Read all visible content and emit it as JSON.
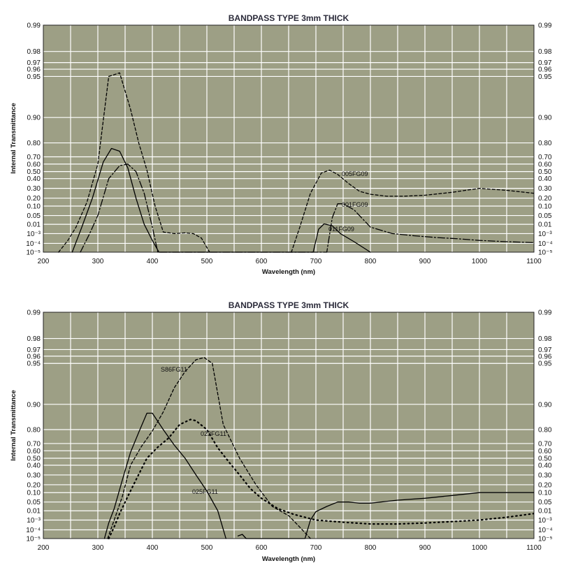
{
  "chart_data": [
    {
      "type": "line",
      "title": "BANDPASS TYPE 3mm THICK",
      "xlabel": "Wavelength (nm)",
      "ylabel": "Internal Transmittance",
      "xlim": [
        200,
        1100
      ],
      "x_ticks": [
        "200",
        "300",
        "400",
        "500",
        "600",
        "700",
        "800",
        "900",
        "1000",
        "1100"
      ],
      "y_ticks": [
        "10⁻⁵",
        "10⁻⁴",
        "10⁻³",
        "0.01",
        "0.05",
        "0.10",
        "0.20",
        "0.30",
        "0.40",
        "0.50",
        "0.60",
        "0.70",
        "0.80",
        "0.90",
        "0.95",
        "0.96",
        "0.97",
        "0.98",
        "0.99"
      ],
      "grid": true,
      "series": [
        {
          "name": "005FG09",
          "style": "dashed",
          "x": [
            228,
            245,
            260,
            280,
            300,
            320,
            340,
            360,
            375,
            390,
            405,
            420,
            440,
            460,
            475,
            490,
            505,
            520,
            540,
            560,
            580,
            600,
            620,
            640,
            655,
            670,
            690,
            710,
            725,
            740,
            760,
            780,
            800,
            830,
            860,
            900,
            950,
            1000,
            1050,
            1100
          ],
          "y": [
            1e-05,
            0.0002,
            0.005,
            0.15,
            0.6,
            0.95,
            0.955,
            0.91,
            0.8,
            0.52,
            0.1,
            0.0015,
            0.001,
            0.0012,
            0.001,
            0.00035,
            1e-05,
            null,
            null,
            null,
            null,
            null,
            null,
            null,
            1e-05,
            0.004,
            0.25,
            0.48,
            0.52,
            0.46,
            0.35,
            0.27,
            0.24,
            0.22,
            0.22,
            0.23,
            0.26,
            0.3,
            0.28,
            0.25
          ]
        },
        {
          "name": "001FG09",
          "style": "dashdot",
          "x": [
            268,
            285,
            300,
            320,
            340,
            355,
            370,
            385,
            400,
            410,
            720,
            730,
            740,
            750,
            770,
            800,
            840,
            880,
            920,
            960,
            1000,
            1050,
            1100
          ],
          "y": [
            1e-05,
            0.001,
            0.05,
            0.4,
            0.58,
            0.6,
            0.5,
            0.25,
            0.005,
            1e-05,
            1e-05,
            0.04,
            0.13,
            0.13,
            0.08,
            0.005,
            0.001,
            0.0006,
            0.0004,
            0.0003,
            0.0002,
            0.00015,
            0.00012
          ]
        },
        {
          "name": "011FG09",
          "style": "solid",
          "x": [
            253,
            270,
            290,
            310,
            325,
            340,
            355,
            370,
            385,
            400,
            412,
            695,
            705,
            715,
            730,
            745,
            770,
            800
          ],
          "y": [
            1e-05,
            0.004,
            0.2,
            0.63,
            0.76,
            0.74,
            0.55,
            0.2,
            0.01,
            0.0002,
            1e-05,
            1e-05,
            0.003,
            0.012,
            0.007,
            0.001,
            0.00015,
            1e-05
          ]
        }
      ]
    },
    {
      "type": "line",
      "title": "BANDPASS TYPE 3mm THICK",
      "xlabel": "Wavelength (nm)",
      "ylabel": "Internal Transmittance",
      "xlim": [
        200,
        1100
      ],
      "x_ticks": [
        "200",
        "300",
        "400",
        "500",
        "600",
        "700",
        "800",
        "900",
        "1000",
        "1100"
      ],
      "y_ticks": [
        "10⁻⁵",
        "10⁻⁴",
        "10⁻³",
        "0.01",
        "0.05",
        "0.10",
        "0.20",
        "0.30",
        "0.40",
        "0.50",
        "0.60",
        "0.70",
        "0.80",
        "0.90",
        "0.95",
        "0.96",
        "0.97",
        "0.98",
        "0.99"
      ],
      "grid": true,
      "series": [
        {
          "name": "S86FG11",
          "style": "dashed",
          "x": [
            318,
            330,
            345,
            360,
            380,
            400,
            420,
            440,
            460,
            480,
            495,
            510,
            530,
            560,
            590,
            620,
            650,
            670,
            690
          ],
          "y": [
            1e-05,
            0.001,
            0.08,
            0.4,
            0.66,
            0.79,
            0.87,
            0.92,
            0.94,
            0.955,
            0.958,
            0.95,
            0.82,
            0.5,
            0.2,
            0.03,
            0.003,
            0.0002,
            1e-05
          ]
        },
        {
          "name": "023FG11",
          "style": "dotted",
          "x": [
            320,
            330,
            340,
            355,
            370,
            390,
            410,
            430,
            450,
            470,
            480,
            500,
            520,
            540,
            560,
            580,
            600,
            630,
            660,
            700,
            750,
            800,
            850,
            900,
            950,
            1000,
            1050,
            1100
          ],
          "y": [
            1e-05,
            0.0002,
            0.005,
            0.08,
            0.25,
            0.5,
            0.65,
            0.74,
            0.82,
            0.84,
            0.835,
            0.8,
            0.64,
            0.45,
            0.3,
            0.15,
            0.07,
            0.02,
            0.004,
            0.001,
            0.0006,
            0.0004,
            0.0004,
            0.0005,
            0.0007,
            0.001,
            0.002,
            0.005
          ]
        },
        {
          "name": "025FG11",
          "style": "solid",
          "x": [
            312,
            320,
            330,
            345,
            360,
            375,
            390,
            400,
            420,
            440,
            460,
            480,
            500,
            520,
            535,
            550,
            557,
            565,
            572,
            680,
            690,
            700,
            720,
            740,
            760,
            780,
            800,
            850,
            900,
            950,
            1000,
            1050,
            1100
          ],
          "y": [
            1e-05,
            0.0005,
            0.02,
            0.25,
            0.58,
            0.78,
            0.865,
            0.865,
            0.8,
            0.68,
            0.5,
            0.3,
            0.12,
            0.01,
            1e-05,
            null,
            2e-05,
            3e-05,
            1e-05,
            1e-05,
            0.001,
            0.008,
            0.03,
            0.05,
            0.05,
            0.045,
            0.045,
            0.06,
            0.07,
            0.085,
            0.1,
            0.1,
            0.1
          ]
        }
      ]
    }
  ]
}
